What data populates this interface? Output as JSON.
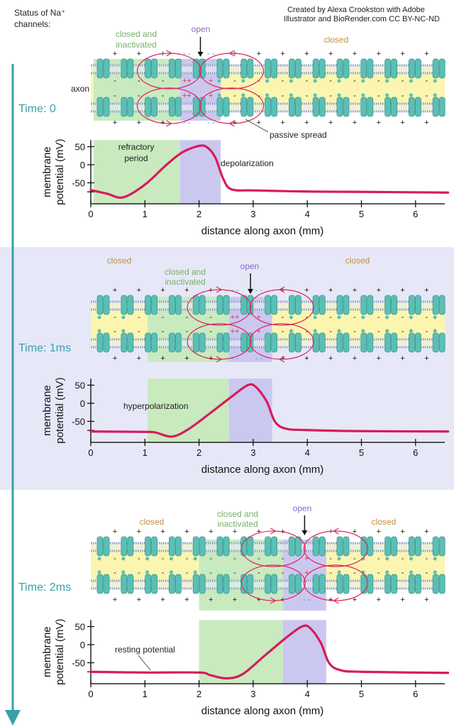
{
  "header": {
    "status_label_line1": "Status of Na⁺",
    "status_label_line2": "channels:",
    "credit_line1": "Created by Alexa Crookston with Adobe",
    "credit_line2": "Illustrator and BioRender.com CC BY-NC-ND"
  },
  "colors": {
    "refractory_region": "#c9eabf",
    "open_region": "#cbc8f0",
    "axon_interior": "#fbf5b0",
    "channel": "#5bbfb5",
    "curve": "#d81b5a",
    "loop": "#e0245e",
    "time_text": "#3aa0a8",
    "closed_text": "#c48c3c",
    "inactivated_text": "#78b068",
    "open_text": "#8a68c8",
    "panel2_background": "#e6e8f8"
  },
  "panels": [
    {
      "time": "Time: 0",
      "status": {
        "closed_left": "",
        "inactivated_1": "closed and",
        "inactivated_2": "inactivated",
        "open": "open",
        "closed_right": "closed"
      },
      "annotations": {
        "axon": "axon",
        "passive_spread": "passive spread",
        "refractory_1": "refractory",
        "refractory_2": "period",
        "depolarization": "depolarization"
      }
    },
    {
      "time": "Time: 1ms",
      "status": {
        "closed_left": "closed",
        "inactivated_1": "closed and",
        "inactivated_2": "inactivated",
        "open": "open",
        "closed_right": "closed"
      },
      "annotations": {
        "hyperpolarization": "hyperpolarization"
      }
    },
    {
      "time": "Time: 2ms",
      "status": {
        "closed_left": "closed",
        "inactivated_1": "closed and",
        "inactivated_2": "inactivated",
        "open": "open",
        "closed_right": "closed"
      },
      "annotations": {
        "resting_potential": "resting potential"
      }
    }
  ],
  "chart_data": [
    {
      "type": "line",
      "xlabel": "distance along axon (mm)",
      "ylabel_line1": "membrane",
      "ylabel_line2": "potential (mV)",
      "xticks": [
        "0",
        "1",
        "2",
        "3",
        "4",
        "5",
        "6"
      ],
      "yticks": [
        "50",
        "0",
        "-50"
      ],
      "xlim": [
        0,
        6.6
      ],
      "ylim": [
        -105,
        65
      ],
      "shaded_regions": [
        {
          "label": "refractory",
          "from": 0.05,
          "to": 1.65
        },
        {
          "label": "open",
          "from": 1.65,
          "to": 2.4
        }
      ],
      "points": [
        [
          0,
          -70
        ],
        [
          0.3,
          -80
        ],
        [
          0.6,
          -90
        ],
        [
          1.0,
          -55
        ],
        [
          1.4,
          0
        ],
        [
          1.7,
          35
        ],
        [
          2.0,
          52
        ],
        [
          2.15,
          48
        ],
        [
          2.3,
          20
        ],
        [
          2.45,
          -40
        ],
        [
          2.6,
          -68
        ],
        [
          3,
          -71
        ],
        [
          4,
          -74
        ],
        [
          5,
          -75
        ],
        [
          6.6,
          -77
        ]
      ]
    },
    {
      "type": "line",
      "xlabel": "distance along axon (mm)",
      "ylabel_line1": "membrane",
      "ylabel_line2": "potential (mV)",
      "xticks": [
        "0",
        "1",
        "2",
        "3",
        "4",
        "5",
        "6"
      ],
      "yticks": [
        "50",
        "0",
        "-50"
      ],
      "xlim": [
        0,
        6.6
      ],
      "ylim": [
        -105,
        65
      ],
      "shaded_regions": [
        {
          "label": "refractory",
          "from": 1.05,
          "to": 2.55
        },
        {
          "label": "open",
          "from": 2.55,
          "to": 3.35
        }
      ],
      "points": [
        [
          0,
          -78
        ],
        [
          1,
          -79
        ],
        [
          1.2,
          -81
        ],
        [
          1.5,
          -92
        ],
        [
          1.8,
          -72
        ],
        [
          2.2,
          -28
        ],
        [
          2.6,
          18
        ],
        [
          2.9,
          50
        ],
        [
          3.05,
          45
        ],
        [
          3.25,
          5
        ],
        [
          3.4,
          -50
        ],
        [
          3.6,
          -70
        ],
        [
          4,
          -74
        ],
        [
          5,
          -77
        ],
        [
          6.6,
          -78
        ]
      ]
    },
    {
      "type": "line",
      "xlabel": "distance along axon (mm)",
      "ylabel_line1": "membrane",
      "ylabel_line2": "potential (mV)",
      "xticks": [
        "0",
        "1",
        "2",
        "3",
        "4",
        "5",
        "6"
      ],
      "yticks": [
        "50",
        "0",
        "-50"
      ],
      "xlim": [
        0,
        6.6
      ],
      "ylim": [
        -105,
        65
      ],
      "shaded_regions": [
        {
          "label": "refractory",
          "from": 2.0,
          "to": 3.55
        },
        {
          "label": "open",
          "from": 3.55,
          "to": 4.35
        }
      ],
      "points": [
        [
          0,
          -75
        ],
        [
          1,
          -77
        ],
        [
          2,
          -77
        ],
        [
          2.2,
          -84
        ],
        [
          2.5,
          -93
        ],
        [
          2.8,
          -82
        ],
        [
          3.2,
          -32
        ],
        [
          3.6,
          18
        ],
        [
          3.9,
          50
        ],
        [
          4.05,
          46
        ],
        [
          4.25,
          5
        ],
        [
          4.4,
          -50
        ],
        [
          4.6,
          -70
        ],
        [
          5,
          -75
        ],
        [
          6.6,
          -78
        ]
      ]
    }
  ]
}
